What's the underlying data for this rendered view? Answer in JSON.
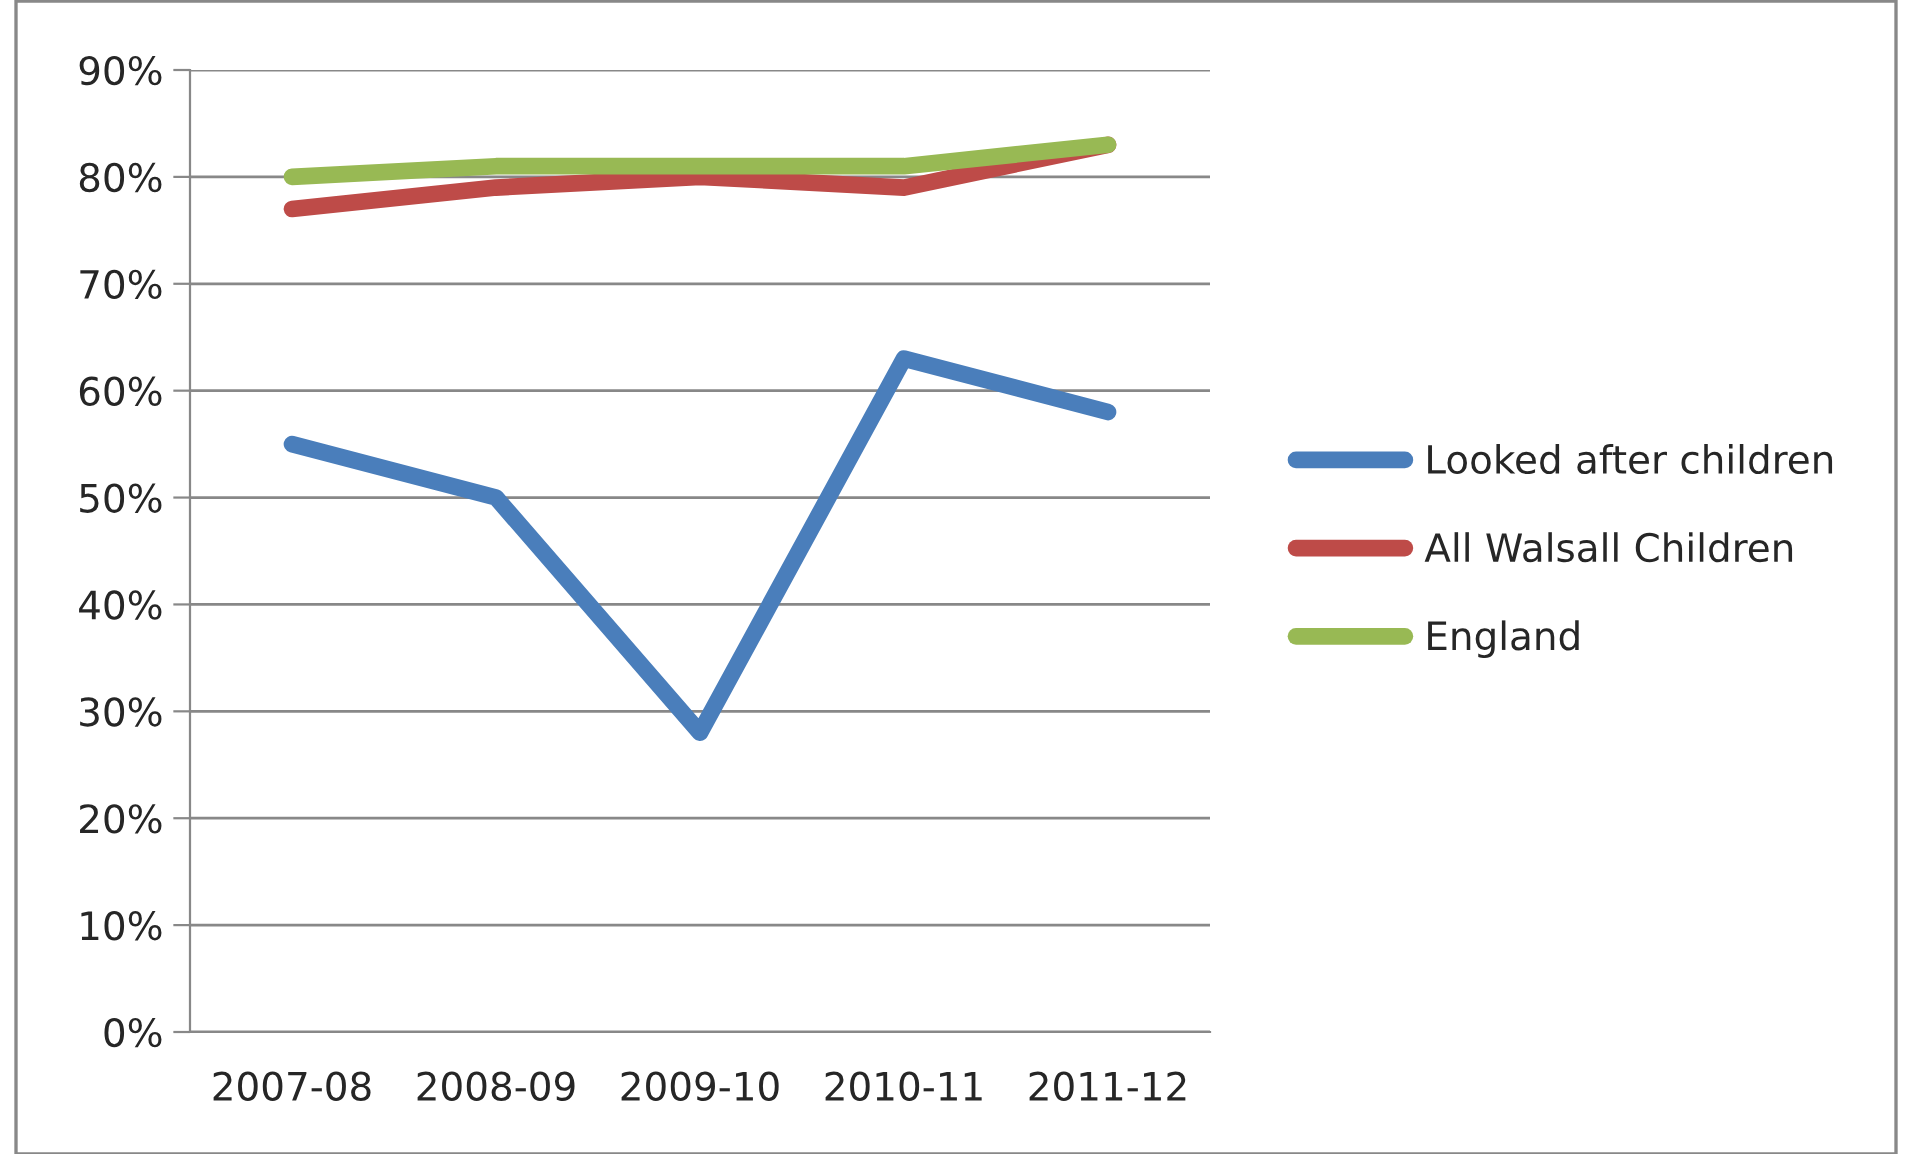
{
  "chart_data": {
    "type": "line",
    "categories": [
      "2007-08",
      "2008-09",
      "2009-10",
      "2010-11",
      "2011-12"
    ],
    "series": [
      {
        "name": "Looked after children",
        "color": "#4a7ebb",
        "values": [
          55,
          50,
          28,
          63,
          58
        ]
      },
      {
        "name": "All Walsall Children",
        "color": "#be4b48",
        "values": [
          77,
          79,
          80,
          79,
          83
        ]
      },
      {
        "name": "England",
        "color": "#98b954",
        "values": [
          80,
          81,
          81,
          81,
          83
        ]
      }
    ],
    "ylim": [
      0,
      90
    ],
    "yticks": [
      {
        "value": 0,
        "label": "0%"
      },
      {
        "value": 10,
        "label": "10%"
      },
      {
        "value": 20,
        "label": "20%"
      },
      {
        "value": 30,
        "label": "30%"
      },
      {
        "value": 40,
        "label": "40%"
      },
      {
        "value": 50,
        "label": "50%"
      },
      {
        "value": 60,
        "label": "60%"
      },
      {
        "value": 70,
        "label": "70%"
      },
      {
        "value": 80,
        "label": "80%"
      },
      {
        "value": 90,
        "label": "90%"
      }
    ],
    "grid": "y",
    "legend": "right",
    "line_style": "solid"
  }
}
